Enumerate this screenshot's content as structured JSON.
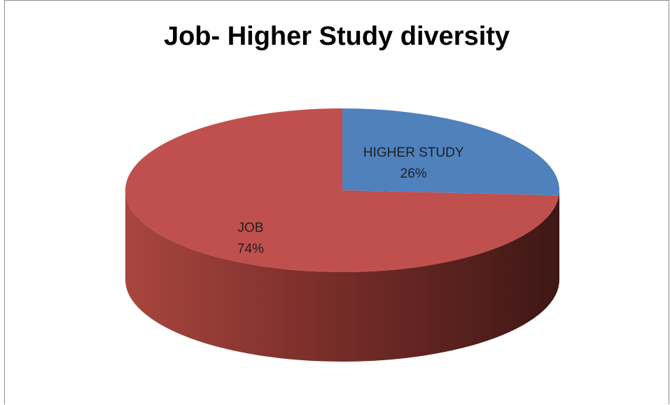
{
  "chart_data": {
    "type": "pie",
    "title": "Job- Higher Study diversity",
    "slices": [
      {
        "name": "HIGHER STUDY",
        "value": 26,
        "label_pct": "26%",
        "color": "#4f81bd"
      },
      {
        "name": "JOB",
        "value": 74,
        "label_pct": "74%",
        "color": "#c0504d"
      }
    ],
    "legend": "none",
    "style": "3d-exploded-none"
  }
}
